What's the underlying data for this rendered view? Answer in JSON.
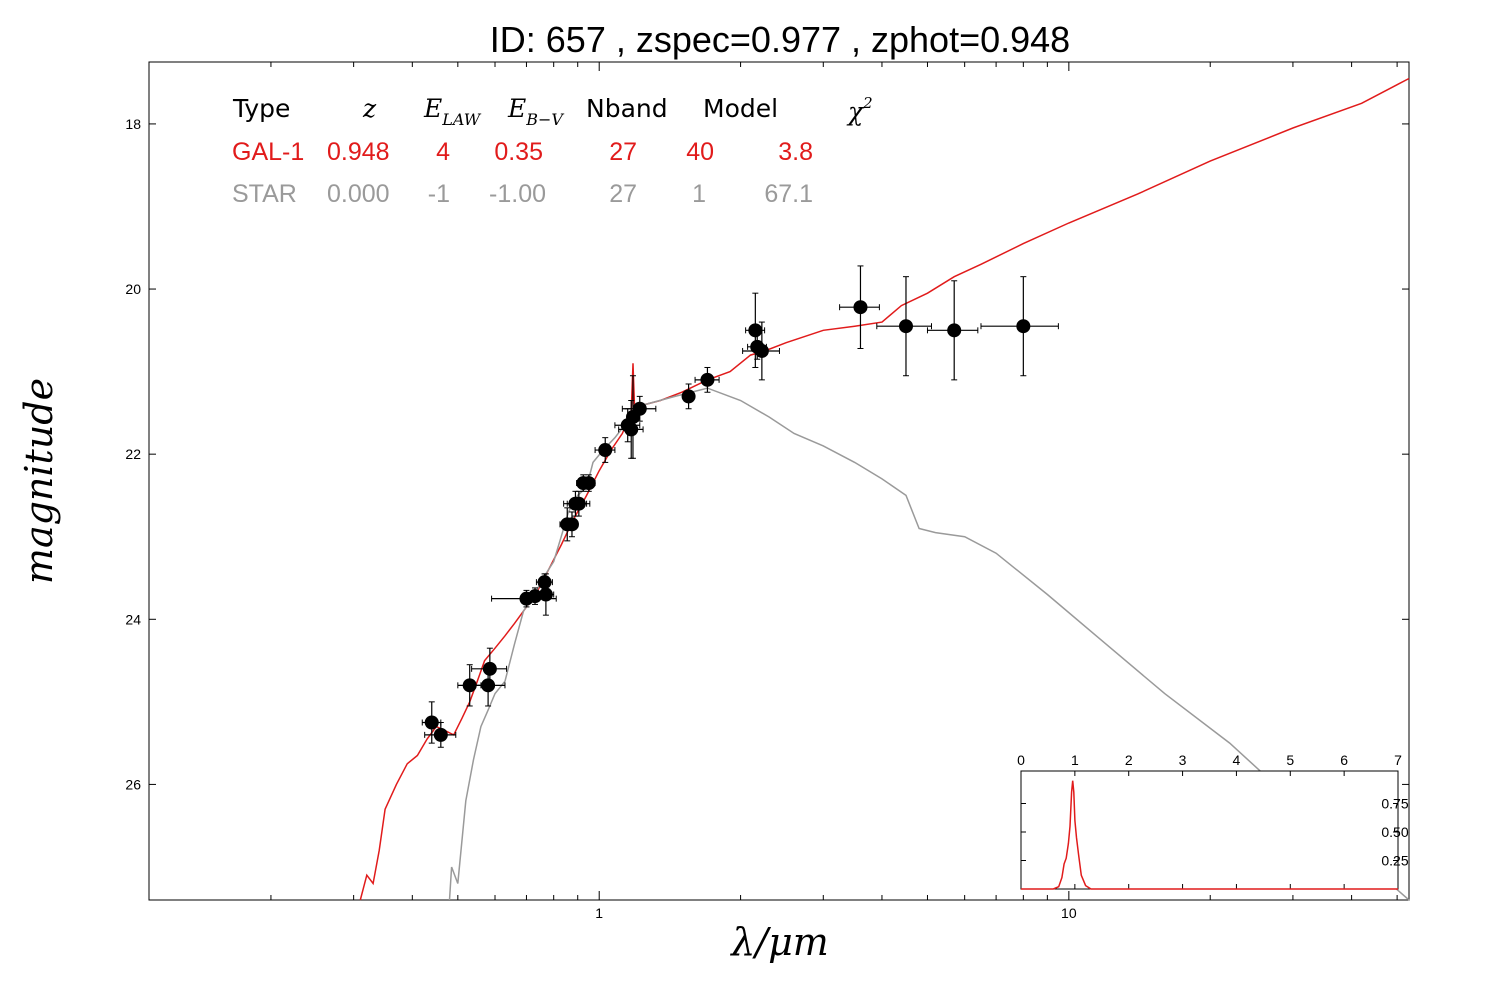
{
  "title": "ID:  657   , zspec=0.977 , zphot=0.948",
  "colors": {
    "galaxy": "#e11b1b",
    "star": "#9a9a9a",
    "points": "#000000",
    "pdf": "#e11b1b"
  },
  "table": {
    "headers": [
      "Type",
      "z",
      "E_LAW",
      "E_B−V",
      "Nband",
      "Model",
      "χ²"
    ],
    "header_display": {
      "type": "Type",
      "z": "z",
      "elaw_main": "E",
      "elaw_sub": "LAW",
      "ebv_main": "E",
      "ebv_sub": "B−V",
      "nband": "Nband",
      "model": "Model",
      "chi_main": "χ",
      "chi_sup": "2"
    },
    "rows": [
      {
        "type": "GAL-1",
        "z": "0.948",
        "elaw": "4",
        "ebv": "0.35",
        "nband": "27",
        "model": "40",
        "chi2": "3.8"
      },
      {
        "type": "STAR",
        "z": "0.000",
        "elaw": "-1",
        "ebv": "-1.00",
        "nband": "27",
        "model": "1",
        "chi2": "67.1"
      }
    ]
  },
  "chart_data": [
    {
      "type": "scatter",
      "title": "ID:  657   , zspec=0.977 , zphot=0.948",
      "xlabel": "λ/μm",
      "ylabel": "magnitude",
      "xscale": "log",
      "xlim": [
        0.11,
        53
      ],
      "ylim": [
        27.4,
        17.25
      ],
      "y_inverted": true,
      "xticks": [
        1,
        10
      ],
      "xtick_labels": [
        "1",
        "10"
      ],
      "yticks": [
        18,
        20,
        22,
        24,
        26
      ],
      "ytick_labels": [
        "18",
        "20",
        "22",
        "24",
        "26"
      ],
      "grid": false,
      "points": [
        {
          "x": 0.44,
          "y": 25.25,
          "xerr": 0.02,
          "yerr": 0.25
        },
        {
          "x": 0.46,
          "y": 25.4,
          "xerr": 0.035,
          "yerr": 0.15
        },
        {
          "x": 0.53,
          "y": 24.8,
          "xerr": 0.03,
          "yerr": 0.25
        },
        {
          "x": 0.585,
          "y": 24.6,
          "xerr": 0.05,
          "yerr": 0.25
        },
        {
          "x": 0.58,
          "y": 24.8,
          "xerr": 0.05,
          "yerr": 0.25
        },
        {
          "x": 0.7,
          "y": 23.75,
          "xerr": 0.11,
          "yerr": 0.1
        },
        {
          "x": 0.73,
          "y": 23.72,
          "xerr": 0.03,
          "yerr": 0.1
        },
        {
          "x": 0.765,
          "y": 23.55,
          "xerr": 0.03,
          "yerr": 0.1
        },
        {
          "x": 0.77,
          "y": 23.7,
          "xerr": 0.03,
          "yerr": 0.25
        },
        {
          "x": 0.855,
          "y": 22.85,
          "xerr": 0.03,
          "yerr": 0.2
        },
        {
          "x": 0.875,
          "y": 22.85,
          "xerr": 0.025,
          "yerr": 0.15
        },
        {
          "x": 0.89,
          "y": 22.6,
          "xerr": 0.05,
          "yerr": 0.15
        },
        {
          "x": 0.905,
          "y": 22.6,
          "xerr": 0.05,
          "yerr": 0.15
        },
        {
          "x": 0.925,
          "y": 22.35,
          "xerr": 0.03,
          "yerr": 0.1
        },
        {
          "x": 0.95,
          "y": 22.35,
          "xerr": 0.03,
          "yerr": 0.1
        },
        {
          "x": 1.03,
          "y": 21.95,
          "xerr": 0.05,
          "yerr": 0.15
        },
        {
          "x": 1.15,
          "y": 21.65,
          "xerr": 0.07,
          "yerr": 0.2
        },
        {
          "x": 1.17,
          "y": 21.7,
          "xerr": 0.07,
          "yerr": 0.35
        },
        {
          "x": 1.18,
          "y": 21.55,
          "xerr": 0.03,
          "yerr": 0.5
        },
        {
          "x": 1.22,
          "y": 21.45,
          "xerr": 0.1,
          "yerr": 0.15
        },
        {
          "x": 1.55,
          "y": 21.3,
          "xerr": 0.04,
          "yerr": 0.15
        },
        {
          "x": 1.7,
          "y": 21.1,
          "xerr": 0.1,
          "yerr": 0.15
        },
        {
          "x": 2.15,
          "y": 20.5,
          "xerr": 0.1,
          "yerr": 0.45
        },
        {
          "x": 2.17,
          "y": 20.7,
          "xerr": 0.1,
          "yerr": 0.15
        },
        {
          "x": 2.22,
          "y": 20.75,
          "xerr": 0.2,
          "yerr": 0.35
        },
        {
          "x": 3.6,
          "y": 20.22,
          "xerr": 0.35,
          "yerr": 0.5
        },
        {
          "x": 4.5,
          "y": 20.45,
          "xerr": 0.6,
          "yerr": 0.6
        },
        {
          "x": 5.7,
          "y": 20.5,
          "xerr": 0.7,
          "yerr": 0.6
        },
        {
          "x": 8.0,
          "y": 20.45,
          "xerr": 1.5,
          "yerr": 0.6
        }
      ],
      "series": [
        {
          "name": "GAL-1",
          "style": "line",
          "color": "#e11b1b",
          "points": [
            [
              0.31,
              27.4
            ],
            [
              0.32,
              27.1
            ],
            [
              0.33,
              27.2
            ],
            [
              0.34,
              26.8
            ],
            [
              0.35,
              26.3
            ],
            [
              0.37,
              26.0
            ],
            [
              0.39,
              25.75
            ],
            [
              0.41,
              25.65
            ],
            [
              0.43,
              25.45
            ],
            [
              0.45,
              25.3
            ],
            [
              0.47,
              25.35
            ],
            [
              0.49,
              25.4
            ],
            [
              0.51,
              25.2
            ],
            [
              0.53,
              25.0
            ],
            [
              0.55,
              24.75
            ],
            [
              0.57,
              24.5
            ],
            [
              0.6,
              24.35
            ],
            [
              0.63,
              24.2
            ],
            [
              0.66,
              24.05
            ],
            [
              0.7,
              23.85
            ],
            [
              0.74,
              23.65
            ],
            [
              0.78,
              23.4
            ],
            [
              0.83,
              23.1
            ],
            [
              0.88,
              22.8
            ],
            [
              0.94,
              22.5
            ],
            [
              1.0,
              22.2
            ],
            [
              1.06,
              21.95
            ],
            [
              1.12,
              21.75
            ],
            [
              1.17,
              21.5
            ],
            [
              1.18,
              20.9
            ],
            [
              1.19,
              21.5
            ],
            [
              1.25,
              21.4
            ],
            [
              1.35,
              21.35
            ],
            [
              1.5,
              21.25
            ],
            [
              1.7,
              21.1
            ],
            [
              1.9,
              21.0
            ],
            [
              2.1,
              20.8
            ],
            [
              2.25,
              20.75
            ],
            [
              2.5,
              20.65
            ],
            [
              3.0,
              20.5
            ],
            [
              3.5,
              20.45
            ],
            [
              4.0,
              20.4
            ],
            [
              4.4,
              20.2
            ],
            [
              5.0,
              20.05
            ],
            [
              5.7,
              19.85
            ],
            [
              6.5,
              19.7
            ],
            [
              8.0,
              19.45
            ],
            [
              10.0,
              19.2
            ],
            [
              14.0,
              18.85
            ],
            [
              20.0,
              18.45
            ],
            [
              30.0,
              18.05
            ],
            [
              42.0,
              17.75
            ],
            [
              53.0,
              17.45
            ]
          ]
        },
        {
          "name": "STAR",
          "style": "line",
          "color": "#9a9a9a",
          "points": [
            [
              0.48,
              27.4
            ],
            [
              0.485,
              27.0
            ],
            [
              0.5,
              27.2
            ],
            [
              0.52,
              26.2
            ],
            [
              0.54,
              25.7
            ],
            [
              0.56,
              25.3
            ],
            [
              0.58,
              25.1
            ],
            [
              0.6,
              24.9
            ],
            [
              0.63,
              24.75
            ],
            [
              0.66,
              24.3
            ],
            [
              0.69,
              23.9
            ],
            [
              0.72,
              23.75
            ],
            [
              0.76,
              23.5
            ],
            [
              0.8,
              23.3
            ],
            [
              0.83,
              23.0
            ],
            [
              0.86,
              22.7
            ],
            [
              0.9,
              22.5
            ],
            [
              0.94,
              22.4
            ],
            [
              0.97,
              22.1
            ],
            [
              1.02,
              21.95
            ],
            [
              1.08,
              21.8
            ],
            [
              1.15,
              21.6
            ],
            [
              1.25,
              21.4
            ],
            [
              1.45,
              21.3
            ],
            [
              1.7,
              21.2
            ],
            [
              2.0,
              21.35
            ],
            [
              2.3,
              21.55
            ],
            [
              2.6,
              21.75
            ],
            [
              3.0,
              21.9
            ],
            [
              3.5,
              22.1
            ],
            [
              4.0,
              22.3
            ],
            [
              4.5,
              22.5
            ],
            [
              4.8,
              22.9
            ],
            [
              5.2,
              22.95
            ],
            [
              6.0,
              23.0
            ],
            [
              7.0,
              23.2
            ],
            [
              9.0,
              23.7
            ],
            [
              12.0,
              24.3
            ],
            [
              16.0,
              24.9
            ],
            [
              22.0,
              25.5
            ],
            [
              30.0,
              26.2
            ],
            [
              42.0,
              26.9
            ],
            [
              53.0,
              27.4
            ]
          ]
        }
      ]
    },
    {
      "type": "line",
      "title": "",
      "xlabel": "",
      "ylabel": "",
      "xlim": [
        0,
        7
      ],
      "ylim": [
        0,
        1.0
      ],
      "xticks": [
        0,
        1,
        2,
        3,
        4,
        5,
        6,
        7
      ],
      "xtick_labels": [
        "0",
        "1",
        "2",
        "3",
        "4",
        "5",
        "6",
        "7"
      ],
      "yticks": [
        0.25,
        0.5,
        0.75
      ],
      "ytick_labels": [
        "0.25",
        "0.50",
        "0.75"
      ],
      "series": [
        {
          "color": "#e11b1b",
          "points": [
            [
              0,
              0
            ],
            [
              0.6,
              0
            ],
            [
              0.7,
              0.02
            ],
            [
              0.76,
              0.1
            ],
            [
              0.8,
              0.22
            ],
            [
              0.84,
              0.27
            ],
            [
              0.88,
              0.4
            ],
            [
              0.91,
              0.55
            ],
            [
              0.94,
              0.85
            ],
            [
              0.96,
              0.95
            ],
            [
              0.98,
              0.85
            ],
            [
              1.0,
              0.6
            ],
            [
              1.03,
              0.45
            ],
            [
              1.07,
              0.3
            ],
            [
              1.12,
              0.12
            ],
            [
              1.2,
              0.03
            ],
            [
              1.3,
              0
            ],
            [
              7,
              0
            ]
          ]
        }
      ]
    }
  ]
}
